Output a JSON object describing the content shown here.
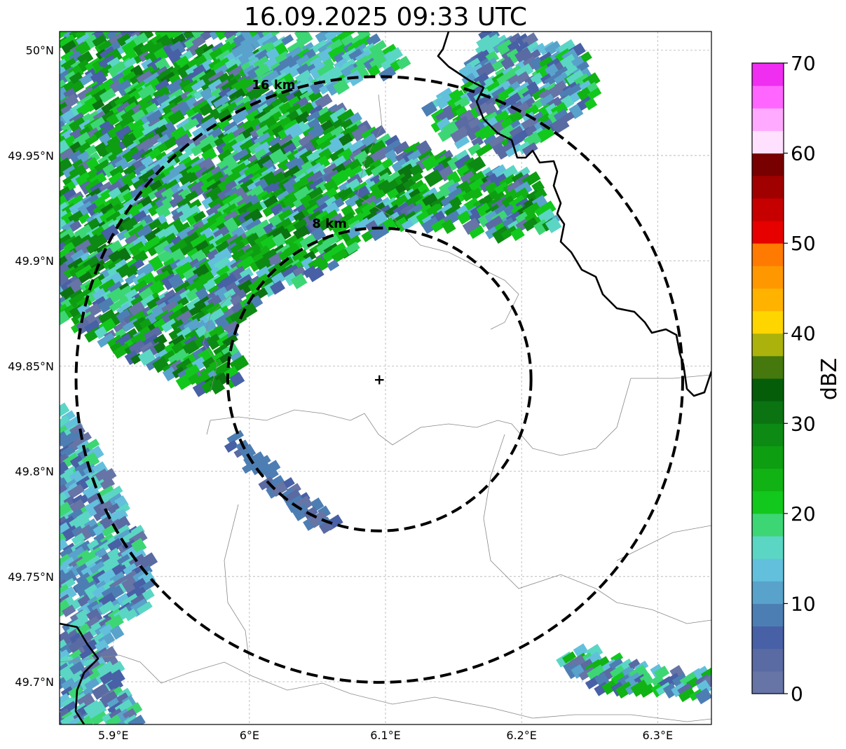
{
  "title": "16.09.2025 09:33 UTC",
  "map": {
    "lon_range": [
      5.8605,
      6.3395
    ],
    "lat_range": [
      49.6797,
      50.0089
    ],
    "radar_site": {
      "lon": 6.0955,
      "lat": 49.8436
    },
    "x_ticks": [
      {
        "lon": 5.9,
        "label": "5.9°E"
      },
      {
        "lon": 6.0,
        "label": "6°E"
      },
      {
        "lon": 6.1,
        "label": "6.1°E"
      },
      {
        "lon": 6.2,
        "label": "6.2°E"
      },
      {
        "lon": 6.3,
        "label": "6.3°E"
      }
    ],
    "y_ticks": [
      {
        "lat": 50.0,
        "label": "50°N"
      },
      {
        "lat": 49.95,
        "label": "49.95°N"
      },
      {
        "lat": 49.9,
        "label": "49.9°N"
      },
      {
        "lat": 49.85,
        "label": "49.85°N"
      },
      {
        "lat": 49.8,
        "label": "49.8°N"
      },
      {
        "lat": 49.75,
        "label": "49.75°N"
      },
      {
        "lat": 49.7,
        "label": "49.7°N"
      }
    ],
    "range_rings": [
      {
        "km": 8,
        "label": "8 km"
      },
      {
        "km": 16,
        "label": "16 km"
      }
    ],
    "echo_areas": [
      {
        "name": "north-west-band",
        "max_dbz": 35
      },
      {
        "name": "north-east-cluster",
        "max_dbz": 22
      },
      {
        "name": "south-west-band",
        "max_dbz": 17
      },
      {
        "name": "south-east-cell",
        "max_dbz": 25
      },
      {
        "name": "central-line",
        "max_dbz": 8
      }
    ]
  },
  "colorbar": {
    "label": "dBZ",
    "min": 0,
    "max": 70,
    "step": 2.5,
    "tick_values": [
      0,
      10,
      20,
      30,
      40,
      50,
      60,
      70
    ],
    "tick_labels": [
      "0",
      "10",
      "20",
      "30",
      "40",
      "50",
      "60",
      "70"
    ],
    "colors": [
      "#6674a6",
      "#5a6aa3",
      "#4860a5",
      "#4d7eb3",
      "#58a2cb",
      "#63c0dc",
      "#5bd6c4",
      "#3dd675",
      "#12c81d",
      "#11b214",
      "#0d9e12",
      "#0d8a13",
      "#0b7312",
      "#055d0a",
      "#45780d",
      "#abb20c",
      "#ffd500",
      "#ffb300",
      "#ff9800",
      "#ff7a00",
      "#e60000",
      "#c60000",
      "#a10000",
      "#780000",
      "#ffe0ff",
      "#ffaaff",
      "#ff66ff",
      "#ef2ef1"
    ]
  }
}
